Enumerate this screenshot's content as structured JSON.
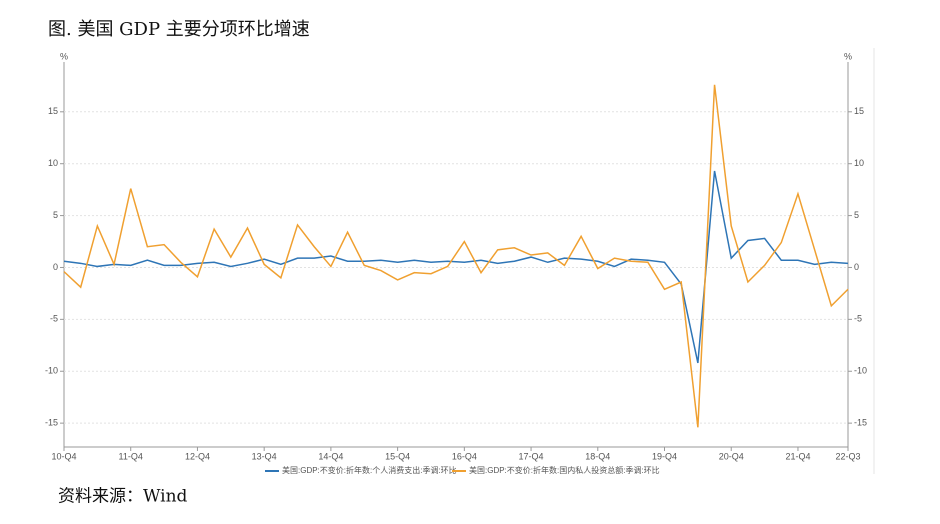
{
  "chart_data": {
    "type": "line",
    "title": "图. 美国 GDP 主要分项环比增速",
    "source": "资料来源：Wind",
    "y_unit": "%",
    "y2_unit": "%",
    "categories": [
      "10-Q4",
      null,
      null,
      null,
      "11-Q4",
      null,
      null,
      null,
      "12-Q4",
      null,
      null,
      null,
      "13-Q4",
      null,
      null,
      null,
      "14-Q4",
      null,
      null,
      null,
      "15-Q4",
      null,
      null,
      null,
      "16-Q4",
      null,
      null,
      null,
      "17-Q4",
      null,
      null,
      null,
      "18-Q4",
      null,
      null,
      null,
      "19-Q4",
      null,
      null,
      null,
      "20-Q4",
      null,
      null,
      null,
      "21-Q4",
      null,
      null,
      "22-Q3"
    ],
    "series": [
      {
        "name": "美国:GDP:不变价:折年数:个人消费支出:季调:环比",
        "color": "#2e75b6",
        "values": [
          0.6,
          0.4,
          0.1,
          0.3,
          0.2,
          0.7,
          0.2,
          0.2,
          0.4,
          0.5,
          0.1,
          0.4,
          0.8,
          0.3,
          0.9,
          0.9,
          1.1,
          0.6,
          0.6,
          0.7,
          0.5,
          0.7,
          0.5,
          0.6,
          0.5,
          0.7,
          0.4,
          0.6,
          1.0,
          0.5,
          0.9,
          0.8,
          0.6,
          0.1,
          0.8,
          0.7,
          0.5,
          -1.6,
          -9.2,
          9.3,
          0.9,
          2.6,
          2.8,
          0.7,
          0.7,
          0.3,
          0.5,
          0.4
        ]
      },
      {
        "name": "美国:GDP:不变价:折年数:国内私人投资总额:季调:环比",
        "color": "#f0a030",
        "values": [
          -0.4,
          -1.9,
          4.0,
          0.3,
          7.6,
          2.0,
          2.2,
          0.5,
          -0.9,
          3.7,
          1.0,
          3.8,
          0.3,
          -1.0,
          4.1,
          2.0,
          0.1,
          3.4,
          0.2,
          -0.3,
          -1.2,
          -0.5,
          -0.6,
          0.1,
          2.5,
          -0.5,
          1.7,
          1.9,
          1.2,
          1.4,
          0.2,
          3.0,
          -0.1,
          0.9,
          0.6,
          0.5,
          -2.1,
          -1.4,
          -15.4,
          17.6,
          4.0,
          -1.4,
          0.2,
          2.4,
          7.1,
          1.7,
          -3.7,
          -2.1
        ]
      }
    ],
    "ylim": [
      -17.3,
      19.8
    ],
    "yticks": [
      -15,
      -10,
      -5,
      0,
      5,
      10,
      15
    ],
    "y2lim": [
      -17.3,
      19.8
    ],
    "y2ticks": [
      -15,
      -10,
      -5,
      0,
      5,
      10,
      15
    ],
    "grid": true
  }
}
